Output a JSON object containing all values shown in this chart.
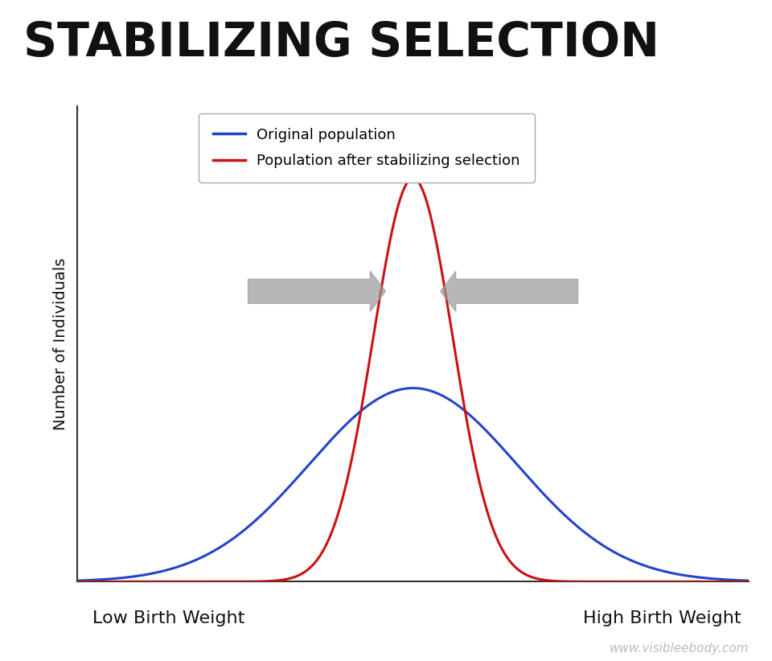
{
  "title": "STABILIZING SELECTION",
  "title_fontsize": 42,
  "title_fontweight": "bold",
  "title_color": "#111111",
  "ylabel": "Number of Individuals",
  "ylabel_fontsize": 14,
  "xlabel_left": "Low Birth Weight",
  "xlabel_right": "High Birth Weight",
  "xlabel_fontsize": 16,
  "watermark": "www.visibleebody.com",
  "watermark_color": "#bbbbbb",
  "watermark_fontsize": 11,
  "background_color": "#ffffff",
  "plot_bg_color": "#ffffff",
  "blue_color": "#2244cc",
  "red_color": "#cc1111",
  "blue_label": "Original population",
  "red_label": "Population after stabilizing selection",
  "legend_fontsize": 13,
  "blue_sigma": 1.7,
  "red_sigma": 0.65,
  "mean": 0.0,
  "blue_amplitude": 0.48,
  "red_amplitude": 1.0,
  "x_range": [
    -5.5,
    5.5
  ],
  "arrow_color": "#999999",
  "axis_color": "#333333",
  "line_width": 2.2
}
